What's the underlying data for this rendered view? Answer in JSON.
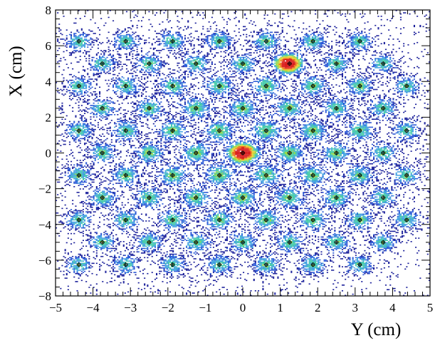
{
  "chart_data": {
    "type": "heatmap",
    "title": "",
    "xlabel": "Y (cm)",
    "ylabel": "X (cm)",
    "xlim": [
      -5,
      5
    ],
    "ylim": [
      -8,
      8
    ],
    "grid": false,
    "x_ticks": [
      -5,
      -4,
      -3,
      -2,
      -1,
      0,
      1,
      2,
      3,
      4,
      5
    ],
    "y_ticks": [
      -8,
      -6,
      -4,
      -2,
      0,
      2,
      4,
      6,
      8
    ],
    "x_tick_labels": [
      "−5",
      "−4",
      "−3",
      "−2",
      "−1",
      "0",
      "1",
      "2",
      "3",
      "4",
      "5"
    ],
    "y_tick_labels": [
      "−8",
      "−6",
      "−4",
      "−2",
      "0",
      "2",
      "4",
      "6",
      "8"
    ],
    "colormap": [
      "#1a1f9a",
      "#2a57d6",
      "#3fa0e0",
      "#40c9a8",
      "#9ad84a",
      "#e8d032",
      "#ee6a1c",
      "#d81818"
    ],
    "marker_color": "#000000",
    "hotspots": [
      {
        "x": 0,
        "y": 0,
        "intensity": 1.0
      },
      {
        "x": 1.2,
        "y": 5.0,
        "intensity": 0.95
      }
    ],
    "hex_lattice": {
      "rows": [
        {
          "y": 6.25,
          "x": [
            -4.375,
            -3.125,
            -1.875,
            -0.625,
            0.625,
            1.875,
            3.125
          ]
        },
        {
          "y": 5.0,
          "x": [
            -3.75,
            -2.5,
            -1.25,
            0,
            1.25,
            2.5,
            3.75
          ]
        },
        {
          "y": 3.75,
          "x": [
            -4.375,
            -3.125,
            -1.875,
            -0.625,
            0.625,
            1.875,
            3.125,
            4.375
          ]
        },
        {
          "y": 2.5,
          "x": [
            -3.75,
            -2.5,
            -1.25,
            0,
            1.25,
            2.5,
            3.75
          ]
        },
        {
          "y": 1.25,
          "x": [
            -4.375,
            -3.125,
            -1.875,
            -0.625,
            0.625,
            1.875,
            3.125,
            4.375
          ]
        },
        {
          "y": 0,
          "x": [
            -3.75,
            -2.5,
            -1.25,
            0,
            1.25,
            2.5,
            3.75
          ]
        },
        {
          "y": -1.25,
          "x": [
            -4.375,
            -3.125,
            -1.875,
            -0.625,
            0.625,
            1.875,
            3.125,
            4.375
          ]
        },
        {
          "y": -2.5,
          "x": [
            -3.75,
            -2.5,
            -1.25,
            0,
            1.25,
            2.5,
            3.75
          ]
        },
        {
          "y": -3.75,
          "x": [
            -4.375,
            -3.125,
            -1.875,
            -0.625,
            0.625,
            1.875,
            3.125,
            4.375
          ]
        },
        {
          "y": -5.0,
          "x": [
            -3.75,
            -2.5,
            -1.25,
            0,
            1.25,
            2.5,
            3.75
          ]
        },
        {
          "y": -6.25,
          "x": [
            -4.375,
            -3.125,
            -1.875,
            -0.625,
            0.625,
            1.875,
            3.125
          ]
        }
      ]
    }
  }
}
